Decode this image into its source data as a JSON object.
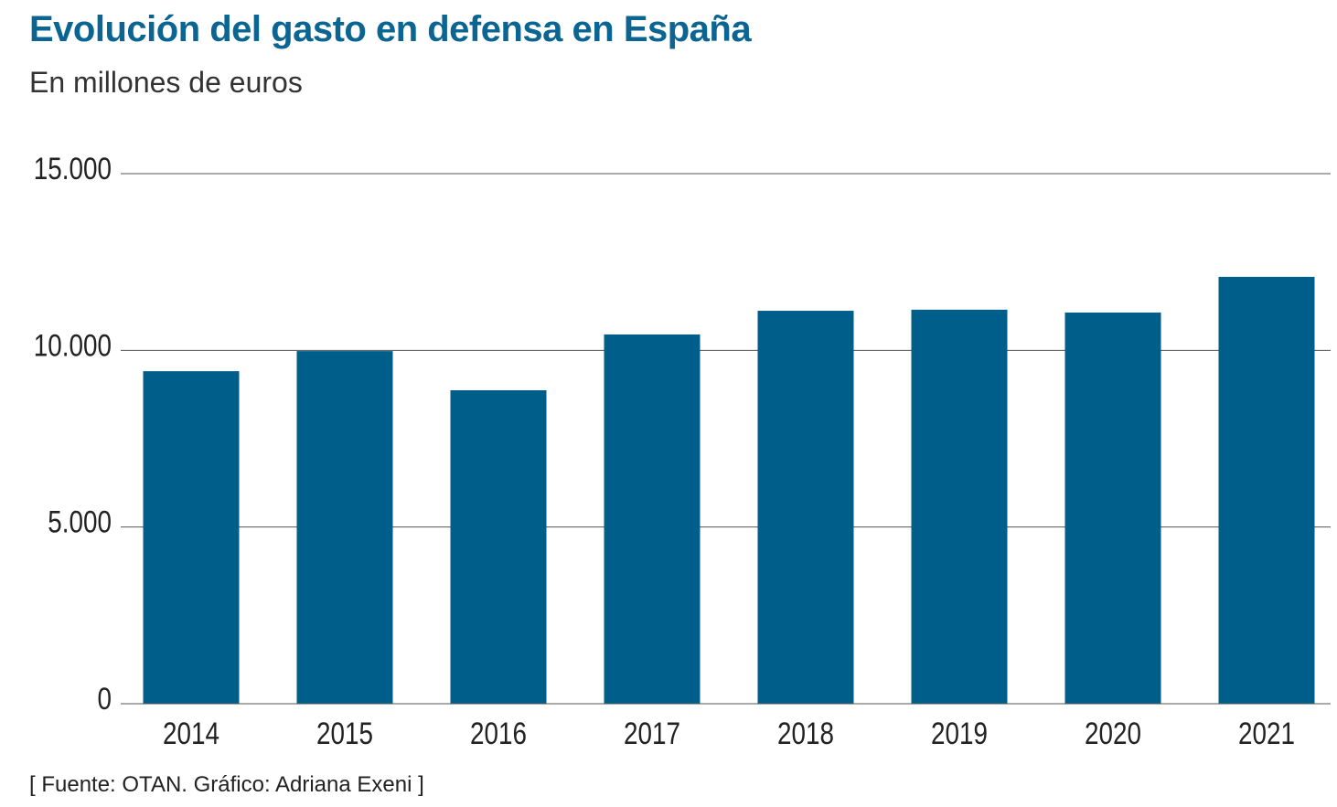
{
  "chart_data": {
    "type": "bar",
    "title": "Evolución del gasto en defensa en España",
    "subtitle": "En millones de euros",
    "source": "[ Fuente: OTAN. Gráfico: Adriana Exeni ]",
    "categories": [
      "2014",
      "2015",
      "2016",
      "2017",
      "2018",
      "2019",
      "2020",
      "2021"
    ],
    "values": [
      9410,
      9980,
      8870,
      10450,
      11120,
      11150,
      11070,
      12080
    ],
    "ylim": [
      0,
      15000
    ],
    "yticks": [
      0,
      5000,
      10000,
      15000
    ],
    "ytick_labels": [
      "0",
      "5.000",
      "10.000",
      "15.000"
    ],
    "grid": true,
    "bar_color": "#005f8a",
    "title_color": "#0b6592"
  }
}
